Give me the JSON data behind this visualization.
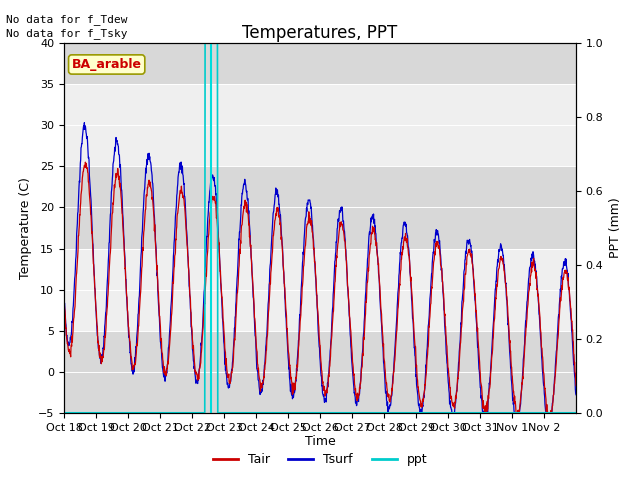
{
  "title": "Temperatures, PPT",
  "xlabel": "Time",
  "ylabel_left": "Temperature (C)",
  "ylabel_right": "PPT (mm)",
  "annotation_text": "No data for f_Tdew\nNo data for f_Tsky",
  "box_label": "BA_arable",
  "ylim_left": [
    -5,
    40
  ],
  "ylim_right": [
    0.0,
    1.0
  ],
  "color_tair": "#cc0000",
  "color_tsurf": "#0000cc",
  "color_ppt": "#00cccc",
  "color_vline": "#00dddd",
  "bg_plot": "#d8d8d8",
  "bg_band": "#efefef",
  "band_ranges": [
    [
      5,
      15
    ],
    [
      25,
      35
    ]
  ],
  "vline_x": 4.6,
  "n_days": 16,
  "tick_labels": [
    "Oct 18",
    "Oct 19",
    "Oct 20",
    "Oct 21",
    "Oct 22",
    "Oct 23",
    "Oct 24",
    "Oct 25",
    "Oct 26",
    "Oct 27",
    "Oct 28",
    "Oct 29",
    "Oct 30",
    "Oct 31",
    "Nov 1",
    "Nov 2"
  ],
  "legend_entries": [
    "Tair",
    "Tsurf",
    "ppt"
  ],
  "title_fontsize": 12,
  "label_fontsize": 9,
  "tick_fontsize": 8
}
